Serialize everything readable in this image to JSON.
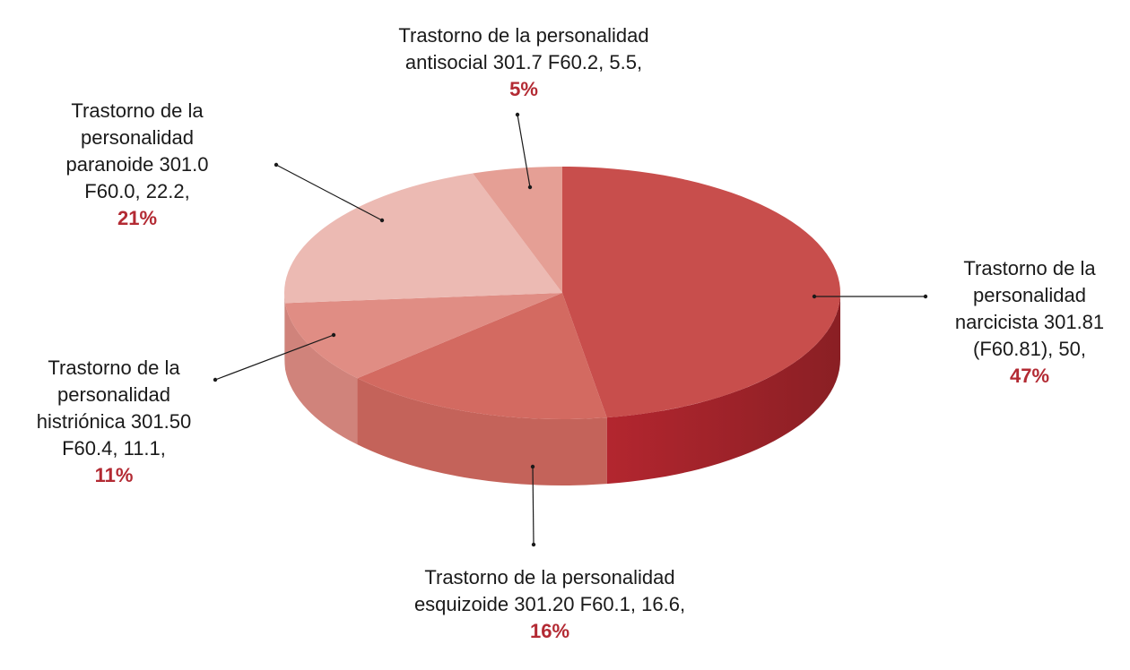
{
  "chart_data": {
    "type": "pie",
    "style": "3d",
    "slices": [
      {
        "label_lines": [
          "Trastorno de la",
          "personalidad",
          "narcicista 301.81",
          "(F60.81), 50,"
        ],
        "value": 50,
        "percent_label": "47%",
        "color": "#c84e4c"
      },
      {
        "label_lines": [
          "Trastorno de la personalidad",
          "esquizoide 301.20 F60.1, 16.6,"
        ],
        "value": 16.6,
        "percent_label": "16%",
        "color": "#d36a61"
      },
      {
        "label_lines": [
          "Trastorno de la",
          "personalidad",
          "histriónica 301.50",
          "F60.4, 11.1,"
        ],
        "value": 11.1,
        "percent_label": "11%",
        "color": "#e08d84"
      },
      {
        "label_lines": [
          "Trastorno de la",
          "personalidad",
          "paranoide 301.0",
          "F60.0, 22.2,"
        ],
        "value": 22.2,
        "percent_label": "21%",
        "color": "#ecbab3"
      },
      {
        "label_lines": [
          "Trastorno de la personalidad",
          "antisocial 301.7 F60.2, 5.5,"
        ],
        "value": 5.5,
        "percent_label": "5%",
        "color": "#e59f95"
      }
    ],
    "percent_color": "#b32a33",
    "legend": "none"
  }
}
